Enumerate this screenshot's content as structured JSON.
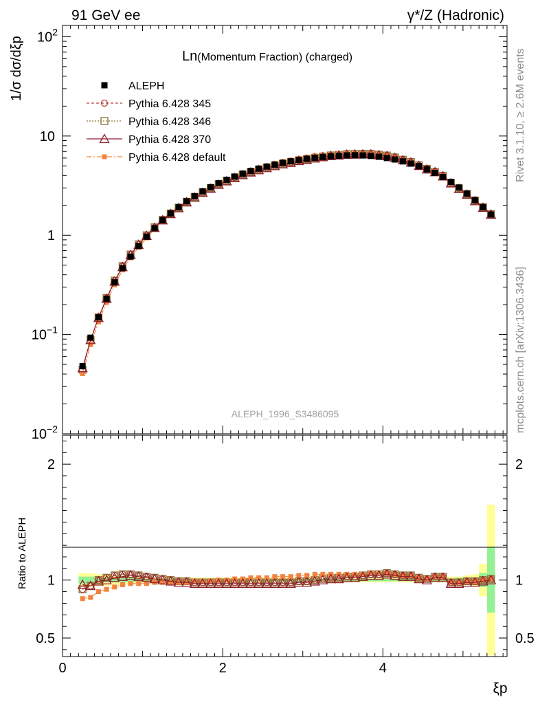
{
  "header": {
    "left": "91 GeV ee",
    "right": "γ*/Z (Hadronic)"
  },
  "side_labels": {
    "rivet": "Rivet 3.1.10, ≥ 2.6M events",
    "mcplots": "mcplots.cern.ch [arXiv:1306.3436]"
  },
  "watermark": "ALEPH_1996_S3486095",
  "chart_data": [
    {
      "type": "line",
      "panel": "main",
      "title_main": "Ln",
      "title_rest": "(Momentum Fraction) (charged)",
      "ylabel": "1/σ dσ/dξp",
      "yscale": "log",
      "ylim": [
        0.01,
        130
      ],
      "xlim": [
        0,
        5.55
      ],
      "ytick_labels": [
        "10−2",
        "10−1",
        "1",
        "10",
        "102"
      ],
      "legend": [
        "ALEPH",
        "Pythia 6.428 345",
        "Pythia 6.428 346",
        "Pythia 6.428 370",
        "Pythia 6.428 default"
      ],
      "x": [
        0.25,
        0.35,
        0.45,
        0.55,
        0.65,
        0.75,
        0.85,
        0.95,
        1.05,
        1.15,
        1.25,
        1.35,
        1.45,
        1.55,
        1.65,
        1.75,
        1.85,
        1.95,
        2.05,
        2.15,
        2.25,
        2.35,
        2.45,
        2.55,
        2.65,
        2.75,
        2.85,
        2.95,
        3.05,
        3.15,
        3.25,
        3.35,
        3.45,
        3.55,
        3.65,
        3.75,
        3.85,
        3.95,
        4.05,
        4.15,
        4.25,
        4.35,
        4.45,
        4.55,
        4.65,
        4.75,
        4.85,
        4.95,
        5.05,
        5.15,
        5.25,
        5.35
      ],
      "series": [
        {
          "name": "ALEPH",
          "values": [
            0.048,
            0.093,
            0.149,
            0.229,
            0.336,
            0.466,
            0.61,
            0.78,
            0.97,
            1.18,
            1.42,
            1.66,
            1.92,
            2.2,
            2.48,
            2.77,
            3.05,
            3.34,
            3.62,
            3.9,
            4.18,
            4.44,
            4.69,
            4.92,
            5.15,
            5.37,
            5.56,
            5.74,
            5.9,
            6.03,
            6.15,
            6.25,
            6.33,
            6.38,
            6.4,
            6.37,
            6.3,
            6.18,
            6.0,
            5.8,
            5.55,
            5.27,
            4.97,
            4.62,
            4.25,
            3.86,
            3.45,
            3.03,
            2.63,
            2.26,
            1.92,
            1.62
          ]
        },
        {
          "name": "Pythia 6.428 345",
          "ratio": [
            0.92,
            0.95,
            1.0,
            1.02,
            1.04,
            1.05,
            1.05,
            1.04,
            1.03,
            1.02,
            1.01,
            1.0,
            0.99,
            0.99,
            0.98,
            0.98,
            0.98,
            0.98,
            0.98,
            0.98,
            0.98,
            0.98,
            0.98,
            0.98,
            0.98,
            0.98,
            0.98,
            0.99,
            0.99,
            1.0,
            1.01,
            1.02,
            1.02,
            1.03,
            1.03,
            1.04,
            1.05,
            1.05,
            1.06,
            1.05,
            1.04,
            1.04,
            1.02,
            1.01,
            1.03,
            1.03,
            0.98,
            0.98,
            0.99,
            0.99,
            1.0,
            1.01
          ]
        },
        {
          "name": "Pythia 6.428 346",
          "ratio": [
            0.92,
            0.95,
            1.0,
            1.02,
            1.04,
            1.05,
            1.05,
            1.04,
            1.03,
            1.02,
            1.01,
            1.0,
            0.99,
            0.99,
            0.98,
            0.98,
            0.98,
            0.98,
            0.98,
            0.98,
            0.98,
            0.98,
            0.98,
            0.98,
            0.98,
            0.98,
            0.98,
            0.99,
            0.99,
            1.0,
            1.01,
            1.02,
            1.02,
            1.03,
            1.03,
            1.04,
            1.05,
            1.05,
            1.06,
            1.05,
            1.04,
            1.04,
            1.02,
            1.01,
            1.03,
            1.03,
            0.98,
            0.98,
            0.99,
            0.99,
            1.0,
            1.01
          ]
        },
        {
          "name": "Pythia 6.428 370",
          "ratio": [
            0.96,
            0.95,
            0.99,
            1.0,
            1.02,
            1.03,
            1.04,
            1.03,
            1.02,
            1.01,
            1.0,
            0.99,
            0.98,
            0.98,
            0.97,
            0.97,
            0.97,
            0.97,
            0.97,
            0.97,
            0.97,
            0.97,
            0.97,
            0.97,
            0.97,
            0.97,
            0.97,
            0.98,
            0.98,
            0.99,
            1.0,
            1.01,
            1.01,
            1.02,
            1.02,
            1.03,
            1.04,
            1.04,
            1.05,
            1.04,
            1.03,
            1.03,
            1.01,
            1.0,
            1.02,
            1.02,
            0.97,
            0.97,
            0.98,
            0.98,
            0.99,
            1.0
          ]
        },
        {
          "name": "Pythia 6.428 default",
          "ratio": [
            0.84,
            0.85,
            0.9,
            0.92,
            0.94,
            0.96,
            0.97,
            0.97,
            0.97,
            0.98,
            0.98,
            0.98,
            0.98,
            0.98,
            0.99,
            0.99,
            0.99,
            1.0,
            1.0,
            1.01,
            1.01,
            1.02,
            1.02,
            1.02,
            1.03,
            1.03,
            1.03,
            1.04,
            1.04,
            1.05,
            1.05,
            1.05,
            1.05,
            1.05,
            1.05,
            1.05,
            1.06,
            1.06,
            1.06,
            1.05,
            1.04,
            1.04,
            1.02,
            1.01,
            1.03,
            1.03,
            0.98,
            0.98,
            0.99,
            0.99,
            1.0,
            1.01
          ]
        }
      ]
    },
    {
      "type": "line",
      "panel": "ratio",
      "ylabel": "Ratio to ALEPH",
      "xlabel": "ξp",
      "ylim": [
        0.34,
        2.25
      ],
      "xlim": [
        0,
        5.55
      ],
      "yticks": [
        0.5,
        1,
        2
      ],
      "ytick_labels": [
        "0.5",
        "1",
        "2"
      ],
      "xticks": [
        0,
        2,
        4
      ],
      "xtick_labels": [
        "0",
        "2",
        "4"
      ],
      "band_stat": [
        0.03,
        0.03,
        0.02,
        0.02,
        0.02,
        0.02,
        0.02,
        0.02,
        0.01,
        0.01,
        0.01,
        0.01,
        0.01,
        0.01,
        0.01,
        0.01,
        0.01,
        0.01,
        0.01,
        0.01,
        0.01,
        0.01,
        0.01,
        0.01,
        0.01,
        0.01,
        0.01,
        0.01,
        0.01,
        0.01,
        0.01,
        0.01,
        0.01,
        0.01,
        0.01,
        0.01,
        0.01,
        0.01,
        0.01,
        0.01,
        0.01,
        0.01,
        0.01,
        0.01,
        0.01,
        0.01,
        0.01,
        0.02,
        0.02,
        0.02,
        0.06,
        0.28
      ],
      "band_total": [
        0.06,
        0.06,
        0.05,
        0.05,
        0.04,
        0.04,
        0.03,
        0.03,
        0.02,
        0.02,
        0.02,
        0.02,
        0.02,
        0.02,
        0.02,
        0.02,
        0.02,
        0.02,
        0.02,
        0.02,
        0.02,
        0.02,
        0.02,
        0.02,
        0.02,
        0.02,
        0.02,
        0.02,
        0.02,
        0.02,
        0.02,
        0.02,
        0.02,
        0.02,
        0.02,
        0.02,
        0.02,
        0.02,
        0.02,
        0.02,
        0.02,
        0.02,
        0.02,
        0.02,
        0.02,
        0.02,
        0.03,
        0.03,
        0.04,
        0.05,
        0.14,
        0.65
      ]
    }
  ],
  "colors": {
    "aleph": "#000000",
    "p345": "#b43c3c",
    "p346": "#8c6e32",
    "p370": "#8c1e2d",
    "pdefault": "#f5823c",
    "band_total": "#ffff96",
    "band_stat": "#96f096",
    "side_text": "#8c8c8c"
  }
}
